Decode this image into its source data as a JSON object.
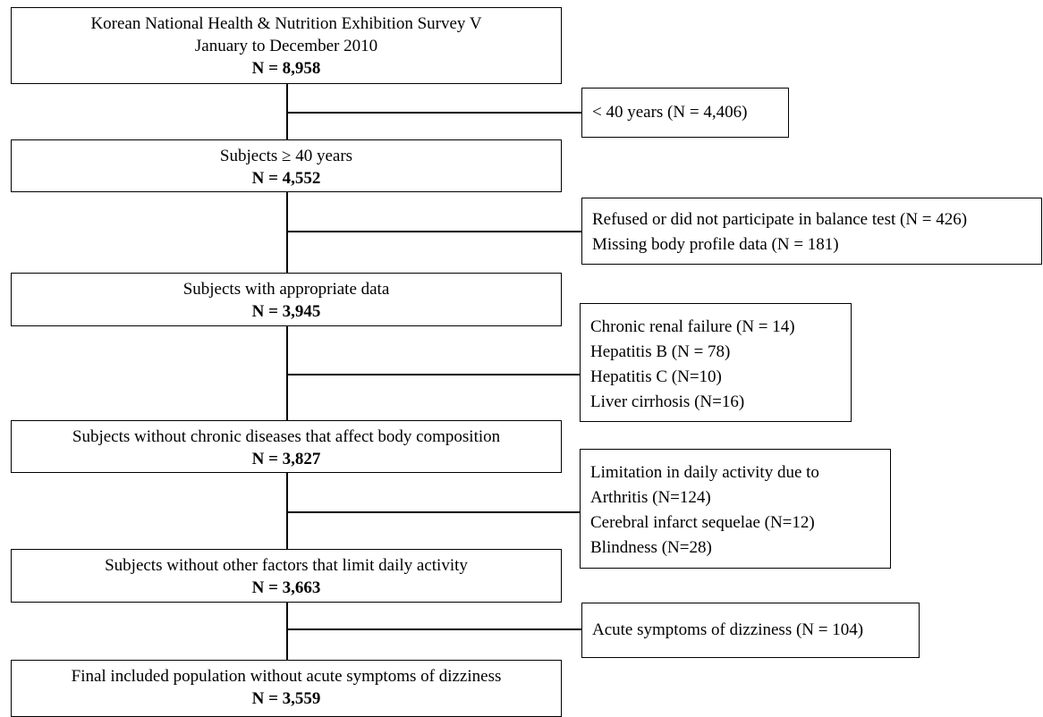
{
  "flowchart": {
    "main_boxes": [
      {
        "lines": [
          "Korean National Health & Nutrition Exhibition Survey V",
          "January to December 2010"
        ],
        "count": "N = 8,958"
      },
      {
        "lines": [
          "Subjects ≥ 40 years"
        ],
        "count": "N = 4,552"
      },
      {
        "lines": [
          "Subjects with appropriate data"
        ],
        "count": "N = 3,945"
      },
      {
        "lines": [
          "Subjects without chronic diseases that affect body composition"
        ],
        "count": "N = 3,827"
      },
      {
        "lines": [
          "Subjects without other factors that limit daily activity"
        ],
        "count": "N = 3,663"
      },
      {
        "lines": [
          "Final included population without acute symptoms of dizziness"
        ],
        "count": "N = 3,559"
      }
    ],
    "exclusion_boxes": [
      {
        "lines": [
          "< 40 years (N = 4,406)"
        ]
      },
      {
        "lines": [
          "Refused or did not participate in balance test (N = 426)",
          "Missing body profile data (N = 181)"
        ]
      },
      {
        "lines": [
          "Chronic renal failure (N = 14)",
          "Hepatitis B (N = 78)",
          "Hepatitis C (N=10)",
          "Liver cirrhosis (N=16)"
        ]
      },
      {
        "lines": [
          "Limitation in daily activity due to",
          "Arthritis (N=124)",
          "Cerebral infarct sequelae (N=12)",
          "Blindness (N=28)"
        ]
      },
      {
        "lines": [
          "Acute symptoms of dizziness (N = 104)"
        ]
      }
    ]
  }
}
